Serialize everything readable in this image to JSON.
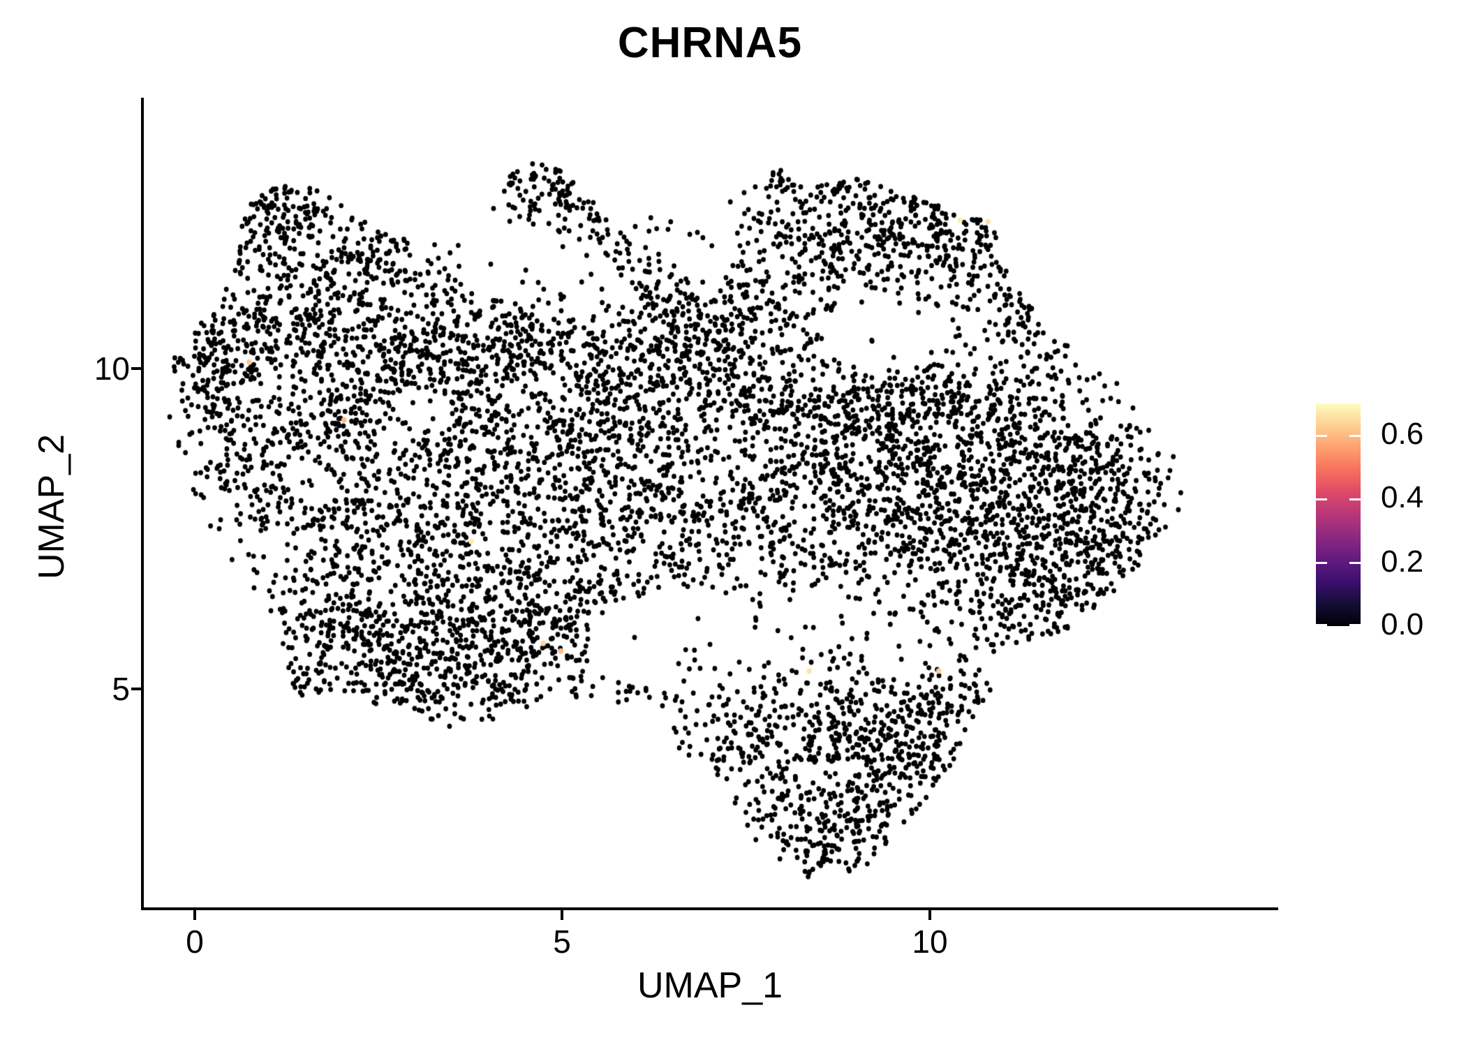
{
  "title": "CHRNA5",
  "axes": {
    "x": {
      "label": "UMAP_1",
      "ticks": [
        {
          "label": "0",
          "value": 0
        },
        {
          "label": "5",
          "value": 5
        },
        {
          "label": "10",
          "value": 10
        }
      ]
    },
    "y": {
      "label": "UMAP_2",
      "ticks": [
        {
          "label": "10",
          "value": 10
        },
        {
          "label": "5",
          "value": 5
        }
      ]
    }
  },
  "colorbar": {
    "labels": [
      {
        "label": "0.6",
        "value": 0.6
      },
      {
        "label": "0.4",
        "value": 0.4
      },
      {
        "label": "0.2",
        "value": 0.2
      },
      {
        "label": "0.0",
        "value": 0.0
      }
    ],
    "vmin": 0.0,
    "vmax": 0.7,
    "tick_color": "#ffffff",
    "gradient_stops": [
      "#000004",
      "#140e36",
      "#3b0f70",
      "#641a80",
      "#8c2981",
      "#b73779",
      "#de4968",
      "#f7705c",
      "#fe9f6d",
      "#fecf92",
      "#fcfdbf"
    ]
  },
  "chart_data": {
    "type": "scatter",
    "title": "CHRNA5",
    "xlabel": "UMAP_1",
    "ylabel": "UMAP_2",
    "xlim": [
      -0.703,
      14.72
    ],
    "ylim": [
      1.568,
      14.205
    ],
    "x_ticks": [
      0,
      5,
      10
    ],
    "y_ticks": [
      5,
      10
    ],
    "grid": false,
    "legend_position": "right",
    "color_scale": {
      "name": "magma",
      "vmin": 0.0,
      "vmax": 0.7,
      "low_color": "#000004",
      "stops": [
        "#000004",
        "#140e36",
        "#3b0f70",
        "#641a80",
        "#8c2981",
        "#b73779",
        "#de4968",
        "#f7705c",
        "#fe9f6d",
        "#fecf92",
        "#fcfdbf"
      ]
    },
    "points_model": {
      "description": "UMAP embedding of ~9000 cells; nearly all cells have zero CHRNA5 expression (black dots). Dot positions approximated by gaussian clusters clipped to the cloud outline, with low-density holes.",
      "total_points_approx": 9245,
      "seed": 1337,
      "clusters": [
        [
          4.7,
          12.9,
          0.45,
          0.32,
          120
        ],
        [
          5.55,
          12.45,
          0.45,
          0.35,
          80
        ],
        [
          1.3,
          12.6,
          0.4,
          0.3,
          130
        ],
        [
          2.45,
          11.65,
          0.5,
          0.33,
          150
        ],
        [
          0.85,
          11.95,
          0.38,
          0.38,
          70
        ],
        [
          0.3,
          10.1,
          0.38,
          0.75,
          230
        ],
        [
          1.5,
          10.7,
          0.55,
          0.45,
          180
        ],
        [
          2.8,
          10.3,
          0.65,
          0.5,
          200
        ],
        [
          4.2,
          10.45,
          0.65,
          0.5,
          200
        ],
        [
          5.3,
          10.05,
          0.6,
          0.5,
          160
        ],
        [
          6.4,
          10.9,
          0.5,
          0.55,
          140
        ],
        [
          7.3,
          10.5,
          0.55,
          0.55,
          150
        ],
        [
          8.6,
          11.8,
          0.75,
          0.55,
          200
        ],
        [
          9.9,
          12.3,
          0.65,
          0.45,
          220
        ],
        [
          10.85,
          11.7,
          0.5,
          0.5,
          150
        ],
        [
          11.5,
          10.8,
          0.45,
          0.6,
          130
        ],
        [
          8.0,
          12.95,
          0.45,
          0.3,
          70
        ],
        [
          9.0,
          13.0,
          0.45,
          0.28,
          60
        ],
        [
          2.0,
          9.2,
          0.75,
          0.6,
          160
        ],
        [
          3.5,
          9.0,
          0.85,
          0.65,
          200
        ],
        [
          5.0,
          8.8,
          0.8,
          0.65,
          180
        ],
        [
          6.5,
          9.3,
          0.8,
          0.75,
          200
        ],
        [
          8.0,
          9.0,
          0.85,
          0.75,
          260
        ],
        [
          9.3,
          9.55,
          0.75,
          0.65,
          260
        ],
        [
          10.5,
          9.0,
          0.7,
          0.7,
          260
        ],
        [
          11.7,
          8.5,
          0.6,
          0.85,
          300
        ],
        [
          12.4,
          7.5,
          0.5,
          0.85,
          300
        ],
        [
          11.5,
          6.6,
          0.65,
          0.75,
          280
        ],
        [
          10.3,
          7.5,
          0.75,
          0.75,
          240
        ],
        [
          9.0,
          7.6,
          0.8,
          0.75,
          200
        ],
        [
          7.6,
          7.8,
          0.8,
          0.75,
          170
        ],
        [
          6.2,
          7.6,
          0.8,
          0.75,
          160
        ],
        [
          4.8,
          7.3,
          0.8,
          0.75,
          200
        ],
        [
          3.4,
          7.2,
          0.75,
          0.75,
          220
        ],
        [
          2.0,
          7.5,
          0.65,
          0.85,
          200
        ],
        [
          0.9,
          8.6,
          0.5,
          0.75,
          150
        ],
        [
          2.2,
          6.0,
          0.65,
          0.55,
          220
        ],
        [
          3.5,
          5.8,
          0.65,
          0.6,
          230
        ],
        [
          4.8,
          5.9,
          0.55,
          0.55,
          170
        ],
        [
          1.45,
          5.1,
          0.22,
          0.13,
          35
        ],
        [
          2.8,
          4.95,
          0.45,
          0.35,
          90
        ],
        [
          4.2,
          4.85,
          0.45,
          0.35,
          70
        ],
        [
          8.3,
          4.6,
          0.85,
          0.55,
          200
        ],
        [
          9.6,
          4.5,
          0.65,
          0.55,
          180
        ],
        [
          8.6,
          3.3,
          0.75,
          0.65,
          280
        ],
        [
          9.9,
          3.6,
          0.5,
          0.5,
          120
        ],
        [
          8.7,
          2.5,
          0.5,
          0.35,
          90
        ],
        [
          7.1,
          4.2,
          0.5,
          0.5,
          80
        ],
        [
          6.4,
          5.2,
          0.4,
          0.4,
          60
        ],
        [
          10.6,
          4.8,
          0.4,
          0.5,
          70
        ],
        [
          6.0,
          9.8,
          2.4,
          1.6,
          240
        ],
        [
          4.0,
          8.2,
          2.2,
          1.5,
          200
        ],
        [
          9.6,
          8.2,
          2.0,
          1.5,
          210
        ],
        [
          7.5,
          11.5,
          1.6,
          1.0,
          120
        ]
      ],
      "outline": [
        [
          1.15,
          12.97
        ],
        [
          1.62,
          12.86
        ],
        [
          2.1,
          12.48
        ],
        [
          2.67,
          12.16
        ],
        [
          3.43,
          11.94
        ],
        [
          4.0,
          12.7
        ],
        [
          4.28,
          13.08
        ],
        [
          4.57,
          13.25
        ],
        [
          5.04,
          13.08
        ],
        [
          5.52,
          12.48
        ],
        [
          5.9,
          12.16
        ],
        [
          6.47,
          12.59
        ],
        [
          6.85,
          12.37
        ],
        [
          7.32,
          12.7
        ],
        [
          7.99,
          13.14
        ],
        [
          8.27,
          12.81
        ],
        [
          9.03,
          12.97
        ],
        [
          9.7,
          12.7
        ],
        [
          10.46,
          12.48
        ],
        [
          10.93,
          12.16
        ],
        [
          11.02,
          11.61
        ],
        [
          11.31,
          11.07
        ],
        [
          11.79,
          10.52
        ],
        [
          12.36,
          9.98
        ],
        [
          12.93,
          9.43
        ],
        [
          13.3,
          8.78
        ],
        [
          13.47,
          8.13
        ],
        [
          13.4,
          7.69
        ],
        [
          13.02,
          7.14
        ],
        [
          12.55,
          6.49
        ],
        [
          11.88,
          5.95
        ],
        [
          11.12,
          5.62
        ],
        [
          10.65,
          5.4
        ],
        [
          10.84,
          5.0
        ],
        [
          10.65,
          4.64
        ],
        [
          10.27,
          3.77
        ],
        [
          9.7,
          2.9
        ],
        [
          9.03,
          2.13
        ],
        [
          8.37,
          2.03
        ],
        [
          7.8,
          2.35
        ],
        [
          7.42,
          2.9
        ],
        [
          6.85,
          3.77
        ],
        [
          6.37,
          4.31
        ],
        [
          5.9,
          4.69
        ],
        [
          5.42,
          4.86
        ],
        [
          4.85,
          4.86
        ],
        [
          4.19,
          4.53
        ],
        [
          3.52,
          4.37
        ],
        [
          2.86,
          4.53
        ],
        [
          2.29,
          4.86
        ],
        [
          1.62,
          4.75
        ],
        [
          1.34,
          4.97
        ],
        [
          1.24,
          5.51
        ],
        [
          0.86,
          6.16
        ],
        [
          0.48,
          6.82
        ],
        [
          0.2,
          7.47
        ],
        [
          -0.18,
          8.13
        ],
        [
          -0.42,
          8.78
        ],
        [
          -0.48,
          9.43
        ],
        [
          -0.37,
          9.98
        ],
        [
          -0.09,
          10.52
        ],
        [
          0.29,
          10.96
        ],
        [
          0.48,
          11.4
        ],
        [
          0.58,
          12.05
        ],
        [
          0.77,
          12.59
        ]
      ],
      "holes": [
        [
          4.45,
          11.65,
          0.85,
          0.6,
          0.88
        ],
        [
          9.4,
          10.55,
          0.9,
          0.6,
          0.85
        ],
        [
          6.85,
          11.9,
          0.55,
          0.5,
          0.7
        ],
        [
          6.6,
          5.75,
          1.05,
          0.8,
          0.85
        ],
        [
          3.0,
          9.3,
          0.5,
          0.4,
          0.7
        ],
        [
          1.75,
          8.3,
          0.5,
          0.45,
          0.55
        ],
        [
          7.1,
          8.6,
          0.65,
          0.5,
          0.55
        ],
        [
          12.3,
          9.4,
          0.45,
          0.35,
          0.55
        ],
        [
          4.75,
          9.6,
          0.5,
          0.38,
          0.6
        ],
        [
          5.6,
          11.0,
          0.5,
          0.4,
          0.6
        ]
      ],
      "high_expression_points": [
        {
          "x": 10.41,
          "y": 12.31,
          "value": 0.68
        },
        {
          "x": 10.79,
          "y": 12.29,
          "value": 0.66
        },
        {
          "x": 3.76,
          "y": 7.3,
          "value": 0.67
        },
        {
          "x": 4.74,
          "y": 5.71,
          "value": 0.64
        },
        {
          "x": 4.98,
          "y": 5.59,
          "value": 0.6
        },
        {
          "x": 8.36,
          "y": 5.28,
          "value": 0.66
        },
        {
          "x": 10.12,
          "y": 5.28,
          "value": 0.63
        },
        {
          "x": 0.74,
          "y": 10.1,
          "value": 0.62
        },
        {
          "x": 2.03,
          "y": 9.2,
          "value": 0.6
        }
      ]
    }
  }
}
